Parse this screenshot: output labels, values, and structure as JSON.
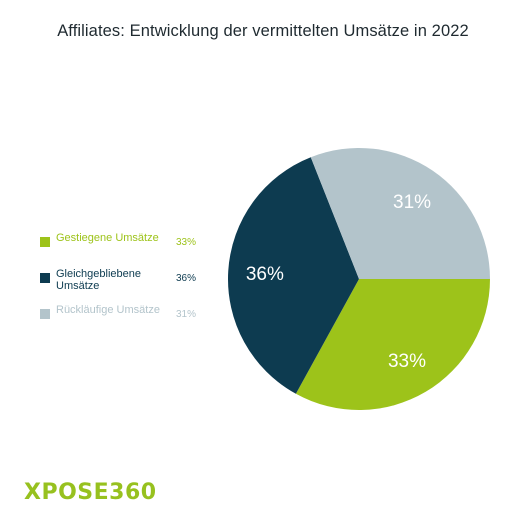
{
  "title": "Affiliates: Entwicklung der vermittelten Umsätze in 2022",
  "legend": {
    "items": [
      {
        "label": "Gestiegene Umsätze",
        "value": "33%",
        "color": "#9dc31a"
      },
      {
        "label": "Gleichgebliebene Umsätze",
        "value": "36%",
        "color": "#0d3b50"
      },
      {
        "label": "Rückläufige Umsätze",
        "value": "31%",
        "color": "#b3c4cb"
      }
    ]
  },
  "chart_data": {
    "type": "pie",
    "title": "Affiliates: Entwicklung der vermittelten Umsätze in 2022",
    "categories": [
      "Gestiegene Umsätze",
      "Gleichgebliebene Umsätze",
      "Rückläufige Umsätze"
    ],
    "values": [
      33,
      36,
      31
    ],
    "labels": [
      "33%",
      "36%",
      "31%"
    ],
    "colors": [
      "#9dc31a",
      "#0d3b50",
      "#b3c4cb"
    ],
    "legend_position": "left"
  },
  "logo": {
    "x": "X",
    "rest": "POSE360"
  }
}
